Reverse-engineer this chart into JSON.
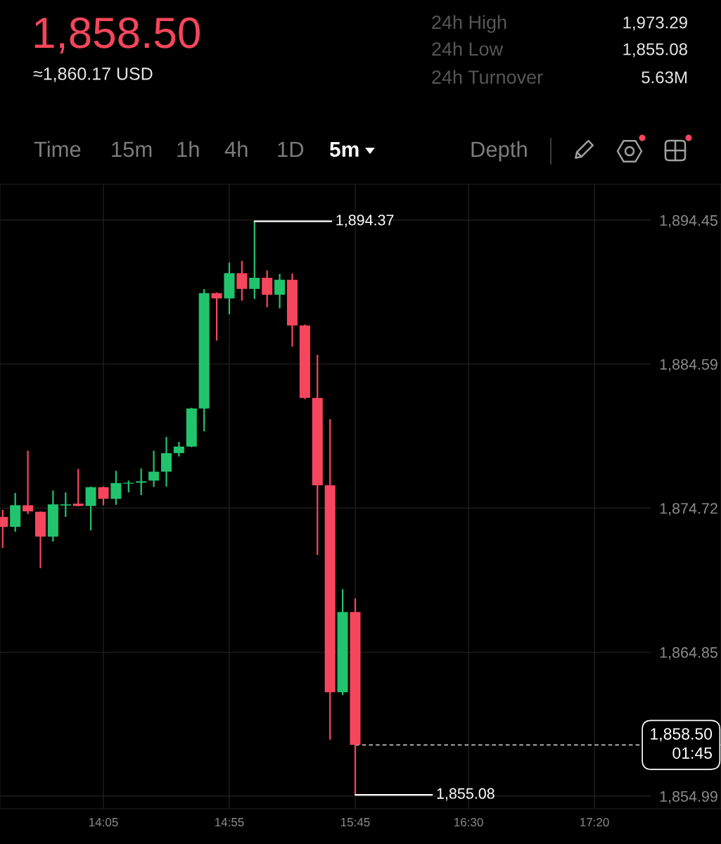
{
  "chart_data": {
    "type": "candlestick",
    "title": "1,858.50",
    "subtitle": "≈1,860.17 USD",
    "x": [
      13.4167,
      13.5,
      13.5833,
      13.6667,
      13.75,
      13.8333,
      13.9167,
      14.0,
      14.0833,
      14.1667,
      14.25,
      14.3333,
      14.4167,
      14.5,
      14.5833,
      14.6667,
      14.75,
      14.8333,
      14.9167,
      15.0,
      15.0833,
      15.1667,
      15.25,
      15.3333,
      15.4167,
      15.5,
      15.5833,
      15.6667,
      15.75
    ],
    "ohlc": [
      [
        1874.12,
        1874.6,
        1872.0,
        1873.44
      ],
      [
        1873.44,
        1875.76,
        1873.11,
        1874.92
      ],
      [
        1874.92,
        1878.66,
        1874.31,
        1874.5
      ],
      [
        1874.47,
        1874.5,
        1870.61,
        1872.77
      ],
      [
        1872.77,
        1875.93,
        1872.43,
        1874.98
      ],
      [
        1874.9,
        1875.8,
        1874.12,
        1874.98
      ],
      [
        1875.03,
        1877.41,
        1874.85,
        1874.87
      ],
      [
        1874.87,
        1876.2,
        1873.2,
        1876.16
      ],
      [
        1876.16,
        1876.2,
        1874.92,
        1875.36
      ],
      [
        1875.36,
        1877.28,
        1874.95,
        1876.44
      ],
      [
        1876.4,
        1876.61,
        1875.8,
        1876.46
      ],
      [
        1876.46,
        1877.44,
        1875.61,
        1876.56
      ],
      [
        1876.61,
        1878.66,
        1876.17,
        1877.22
      ],
      [
        1877.22,
        1879.6,
        1876.2,
        1878.49
      ],
      [
        1878.49,
        1879.26,
        1878.26,
        1878.94
      ],
      [
        1878.94,
        1881.6,
        1878.9,
        1881.55
      ],
      [
        1881.55,
        1889.73,
        1879.98,
        1889.45
      ],
      [
        1889.45,
        1889.5,
        1886.2,
        1889.09
      ],
      [
        1889.09,
        1891.54,
        1888.01,
        1890.82
      ],
      [
        1890.82,
        1891.66,
        1888.94,
        1889.74
      ],
      [
        1889.74,
        1894.37,
        1889.05,
        1890.5
      ],
      [
        1890.5,
        1891.01,
        1888.49,
        1889.34
      ],
      [
        1889.34,
        1890.77,
        1888.41,
        1890.37
      ],
      [
        1890.37,
        1890.79,
        1885.79,
        1887.24
      ],
      [
        1887.24,
        1887.3,
        1882.2,
        1882.27
      ],
      [
        1882.27,
        1885.23,
        1871.52,
        1876.29
      ],
      [
        1876.29,
        1880.81,
        1858.86,
        1862.11
      ],
      [
        1862.11,
        1869.17,
        1861.91,
        1867.6
      ],
      [
        1867.6,
        1868.54,
        1855.08,
        1858.5
      ]
    ],
    "colors": [
      "#f6465d",
      "#22c36d",
      "#f6465d",
      "#f6465d",
      "#22c36d",
      "#22c36d",
      "#f6465d",
      "#22c36d",
      "#f6465d",
      "#22c36d",
      "#22c36d",
      "#22c36d",
      "#22c36d",
      "#22c36d",
      "#22c36d",
      "#22c36d",
      "#22c36d",
      "#f6465d",
      "#22c36d",
      "#f6465d",
      "#22c36d",
      "#f6465d",
      "#22c36d",
      "#f6465d",
      "#f6465d",
      "#f6465d",
      "#f6465d",
      "#22c36d",
      "#f6465d"
    ],
    "xlim": [
      13.399,
      18.1709
    ],
    "ylim": [
      1854.12,
      1896.91
    ],
    "xticks": [
      {
        "value": 14.0833,
        "label": "14:05"
      },
      {
        "value": 14.9167,
        "label": "14:55"
      },
      {
        "value": 15.75,
        "label": "15:45"
      },
      {
        "value": 16.5,
        "label": "16:30"
      },
      {
        "value": 17.3333,
        "label": "17:20"
      }
    ],
    "yticks": [
      {
        "value": 1854.99,
        "label": "1,854.99"
      },
      {
        "value": 1864.85,
        "label": "1,864.85"
      },
      {
        "value": 1874.72,
        "label": "1,874.72"
      },
      {
        "value": 1884.59,
        "label": "1,884.59"
      },
      {
        "value": 1894.45,
        "label": "1,894.45"
      }
    ],
    "grid": true,
    "ref_lines": [
      {
        "axis": "y",
        "value": 1858.5,
        "label": "1,858.50\n01:45",
        "line_style": "dashed",
        "color": "#ffffff"
      }
    ],
    "annotations": [
      "24h High",
      "1,973.29",
      "24h Low",
      "1,855.08",
      "24h Turnover",
      "5.63M",
      "Time",
      "15m",
      "1h",
      "4h",
      "1D",
      "5m",
      "Depth",
      {
        "text": "1,894.37",
        "x": 15.0833,
        "y": 1894.37
      },
      {
        "text": "1,855.08",
        "x": 15.75,
        "y": 1855.08
      }
    ]
  }
}
